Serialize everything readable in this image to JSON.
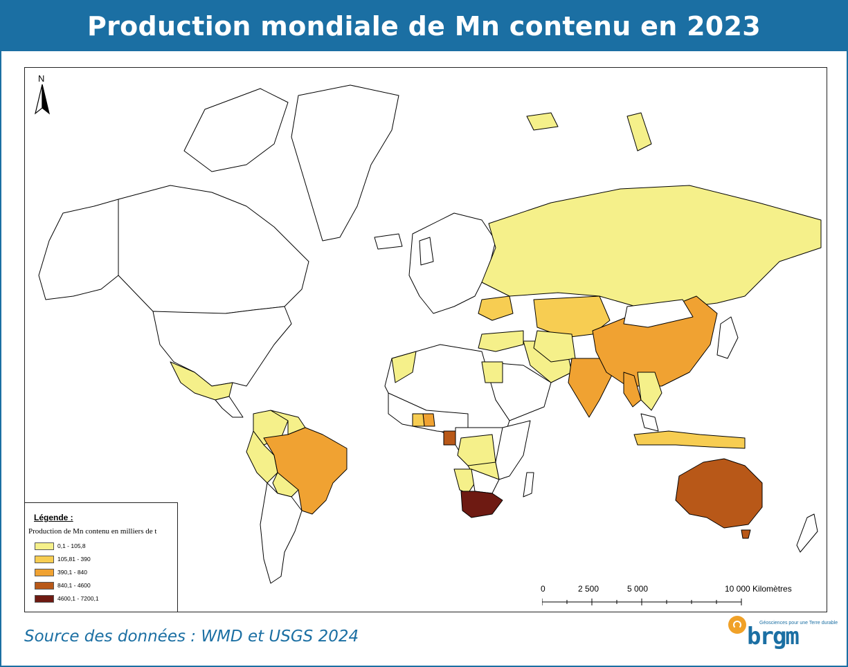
{
  "title": "Production mondiale de Mn contenu en 2023",
  "map": {
    "north_label": "N",
    "legend": {
      "heading": "Légende :",
      "subtitle": "Production de Mn contenu en milliers de t",
      "classes": [
        {
          "label": "0,1 - 105,8",
          "color": "#f5f08a"
        },
        {
          "label": "105,81 - 390",
          "color": "#f7cd52"
        },
        {
          "label": "390,1 - 840",
          "color": "#f0a232"
        },
        {
          "label": "840,1 - 4600",
          "color": "#b85818"
        },
        {
          "label": "4600,1 - 7200,1",
          "color": "#6e1a12"
        }
      ]
    },
    "scale": {
      "ticks": [
        "0",
        "2 500",
        "5 000",
        "10 000 Kilomètres"
      ]
    },
    "colors": {
      "no_data": "#ffffff",
      "outline": "#000000"
    }
  },
  "source": "Source des données : WMD et USGS 2024",
  "logo": {
    "name": "brgm",
    "tagline": "Géosciences pour une Terre durable"
  }
}
